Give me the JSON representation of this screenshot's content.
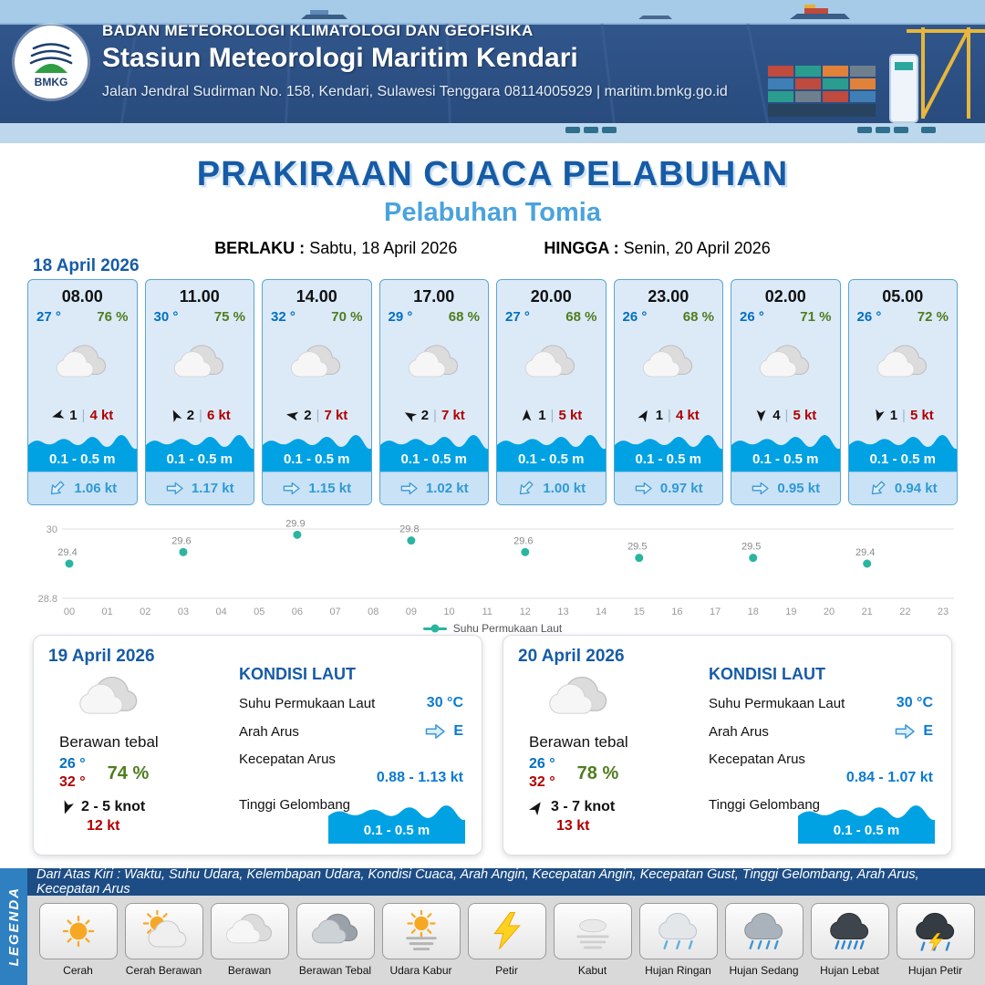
{
  "header": {
    "logo_text": "BMKG",
    "agency": "BADAN METEOROLOGI KLIMATOLOGI DAN GEOFISIKA",
    "station": "Stasiun Meteorologi Maritim Kendari",
    "address": "Jalan Jendral Sudirman No. 158, Kendari, Sulawesi Tenggara  08114005929 | maritim.bmkg.go.id"
  },
  "title": {
    "main": "PRAKIRAAN CUACA PELABUHAN",
    "port": "Pelabuhan Tomia",
    "valid_from_label": "BERLAKU :",
    "valid_from": "Sabtu, 18 April 2026",
    "valid_to_label": "HINGGA :",
    "valid_to": "Senin, 20 April 2026"
  },
  "forecast": {
    "date": "18 April 2026",
    "cards": [
      {
        "time": "08.00",
        "temp": "27 °",
        "humidity": "76 %",
        "icon": "cloud",
        "wind_dir_deg": 255,
        "wind_speed": "1",
        "gust": "4 kt",
        "wave_height": "0.1 - 0.5 m",
        "current_dir_deg": 225,
        "current_speed": "1.06 kt"
      },
      {
        "time": "11.00",
        "temp": "30 °",
        "humidity": "75 %",
        "icon": "cloud",
        "wind_dir_deg": 335,
        "wind_speed": "2",
        "gust": "6 kt",
        "wave_height": "0.1 - 0.5 m",
        "current_dir_deg": 90,
        "current_speed": "1.17 kt"
      },
      {
        "time": "14.00",
        "temp": "32 °",
        "humidity": "70 %",
        "icon": "cloud",
        "wind_dir_deg": 280,
        "wind_speed": "2",
        "gust": "7 kt",
        "wave_height": "0.1 - 0.5 m",
        "current_dir_deg": 90,
        "current_speed": "1.15 kt"
      },
      {
        "time": "17.00",
        "temp": "29 °",
        "humidity": "68 %",
        "icon": "cloud",
        "wind_dir_deg": 300,
        "wind_speed": "2",
        "gust": "7 kt",
        "wave_height": "0.1 - 0.5 m",
        "current_dir_deg": 90,
        "current_speed": "1.02 kt"
      },
      {
        "time": "20.00",
        "temp": "27 °",
        "humidity": "68 %",
        "icon": "cloud",
        "wind_dir_deg": 0,
        "wind_speed": "1",
        "gust": "5 kt",
        "wave_height": "0.1 - 0.5 m",
        "current_dir_deg": 225,
        "current_speed": "1.00 kt"
      },
      {
        "time": "23.00",
        "temp": "26 °",
        "humidity": "68 %",
        "icon": "cloud",
        "wind_dir_deg": 30,
        "wind_speed": "1",
        "gust": "4 kt",
        "wave_height": "0.1 - 0.5 m",
        "current_dir_deg": 90,
        "current_speed": "0.97 kt"
      },
      {
        "time": "02.00",
        "temp": "26 °",
        "humidity": "71 %",
        "icon": "cloud",
        "wind_dir_deg": 180,
        "wind_speed": "4",
        "gust": "5 kt",
        "wave_height": "0.1 - 0.5 m",
        "current_dir_deg": 90,
        "current_speed": "0.95 kt"
      },
      {
        "time": "05.00",
        "temp": "26 °",
        "humidity": "72 %",
        "icon": "cloud",
        "wind_dir_deg": 195,
        "wind_speed": "1",
        "gust": "5 kt",
        "wave_height": "0.1 - 0.5 m",
        "current_dir_deg": 225,
        "current_speed": "0.94 kt"
      }
    ]
  },
  "chart_data": {
    "type": "scatter",
    "title": "",
    "xlabel": "",
    "ylabel": "",
    "ylim": [
      28.8,
      30
    ],
    "y_ticks": [
      30,
      28.8
    ],
    "x_ticks": [
      "00",
      "01",
      "02",
      "03",
      "04",
      "05",
      "06",
      "07",
      "08",
      "09",
      "10",
      "11",
      "12",
      "13",
      "14",
      "15",
      "16",
      "17",
      "18",
      "19",
      "20",
      "21",
      "22",
      "23"
    ],
    "series": [
      {
        "name": "Suhu Permukaan Laut",
        "x": [
          0,
          3,
          6,
          9,
          12,
          15,
          18,
          21
        ],
        "values": [
          29.4,
          29.6,
          29.9,
          29.8,
          29.6,
          29.5,
          29.5,
          29.4
        ]
      }
    ],
    "grid": true,
    "legend_position": "bottom",
    "point_color": "#2bb5a0"
  },
  "daily": [
    {
      "date": "19 April 2026",
      "condition": "Berawan tebal",
      "icon": "cloud",
      "temp_min": "26 °",
      "temp_max": "32 °",
      "humidity": "74 %",
      "wind_dir_deg": 200,
      "wind_range": "2 - 5 knot",
      "gust": "12 kt",
      "sea": {
        "title": "KONDISI LAUT",
        "sst_label": "Suhu Permukaan Laut",
        "sst": "30 °C",
        "current_dir_label": "Arah Arus",
        "current_dir_deg": 90,
        "current_dir": "E",
        "current_speed_label": "Kecepatan Arus",
        "current_speed": "0.88 - 1.13 kt",
        "wave_label": "Tinggi Gelombang",
        "wave_height": "0.1 - 0.5 m"
      }
    },
    {
      "date": "20 April 2026",
      "condition": "Berawan tebal",
      "icon": "cloud",
      "temp_min": "26 °",
      "temp_max": "32 °",
      "humidity": "78 %",
      "wind_dir_deg": 35,
      "wind_range": "3 - 7 knot",
      "gust": "13 kt",
      "sea": {
        "title": "KONDISI LAUT",
        "sst_label": "Suhu Permukaan Laut",
        "sst": "30 °C",
        "current_dir_label": "Arah Arus",
        "current_dir_deg": 90,
        "current_dir": "E",
        "current_speed_label": "Kecepatan Arus",
        "current_speed": "0.84 - 1.07 kt",
        "wave_label": "Tinggi Gelombang",
        "wave_height": "0.1 - 0.5 m"
      }
    }
  ],
  "legend": {
    "strip_label": "LEGENDA",
    "note": "Dari Atas Kiri : Waktu, Suhu Udara, Kelembapan Udara, Kondisi Cuaca, Arah Angin, Kecepatan Angin, Kecepatan Gust, Tinggi Gelombang, Arah Arus, Kecepatan Arus",
    "items": [
      {
        "label": "Cerah",
        "icon": "sun"
      },
      {
        "label": "Cerah Berawan",
        "icon": "sun-cloud"
      },
      {
        "label": "Berawan",
        "icon": "cloud"
      },
      {
        "label": "Berawan Tebal",
        "icon": "cloud-dark"
      },
      {
        "label": "Udara Kabur",
        "icon": "haze"
      },
      {
        "label": "Petir",
        "icon": "lightning"
      },
      {
        "label": "Kabut",
        "icon": "fog"
      },
      {
        "label": "Hujan Ringan",
        "icon": "rain-light"
      },
      {
        "label": "Hujan Sedang",
        "icon": "rain-medium"
      },
      {
        "label": "Hujan Lebat",
        "icon": "rain-heavy"
      },
      {
        "label": "Hujan Petir",
        "icon": "rain-thunder"
      }
    ]
  },
  "colors": {
    "accent_blue": "#175ba6",
    "light_blue": "#4aa3dd",
    "temp_blue": "#0070c0",
    "humidity_green": "#4e7d1e",
    "alert_red": "#b00000",
    "wave_blue": "#00a2e3",
    "sst_dot_teal": "#2bb5a0"
  }
}
